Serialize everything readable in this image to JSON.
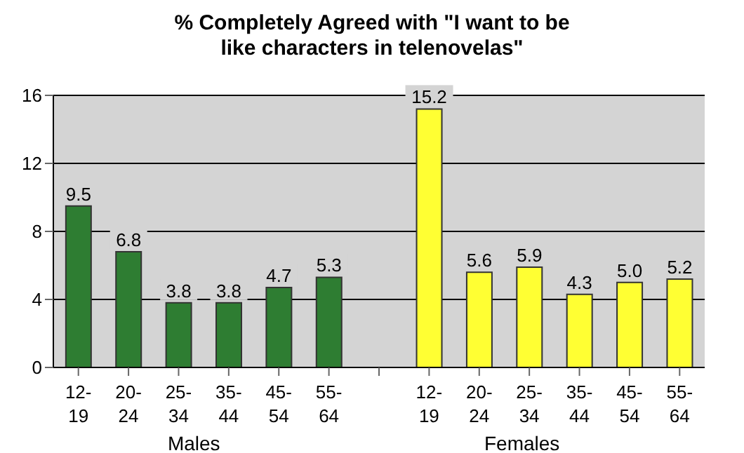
{
  "chart_data": {
    "type": "bar",
    "title": "% Completely Agreed with \"I want to be like characters in telenovelas\"",
    "categories": [
      "12-19",
      "20-24",
      "25-34",
      "35-44",
      "45-54",
      "55-64",
      null,
      "12-19",
      "20-24",
      "25-34",
      "35-44",
      "45-54",
      "55-64"
    ],
    "values": [
      9.5,
      6.8,
      3.8,
      3.8,
      4.7,
      5.3,
      null,
      15.2,
      5.6,
      5.9,
      4.3,
      5.0,
      5.2
    ],
    "colors": [
      "#2e7d32",
      "#2e7d32",
      "#2e7d32",
      "#2e7d32",
      "#2e7d32",
      "#2e7d32",
      "#2e7d32",
      "#ffff33",
      "#ffff33",
      "#ffff33",
      "#ffff33",
      "#ffff33",
      "#ffff33"
    ],
    "value_labels": [
      "9.5",
      "6.8",
      "3.8",
      "3.8",
      "4.7",
      "5.3",
      null,
      "15.2",
      "5.6",
      "5.9",
      "4.3",
      "5.0",
      "5.2"
    ],
    "ylim": [
      0,
      16
    ],
    "yticks": [
      0,
      4,
      8,
      12,
      16
    ],
    "grid": "y",
    "annotations": [
      "Males",
      "Females"
    ]
  }
}
